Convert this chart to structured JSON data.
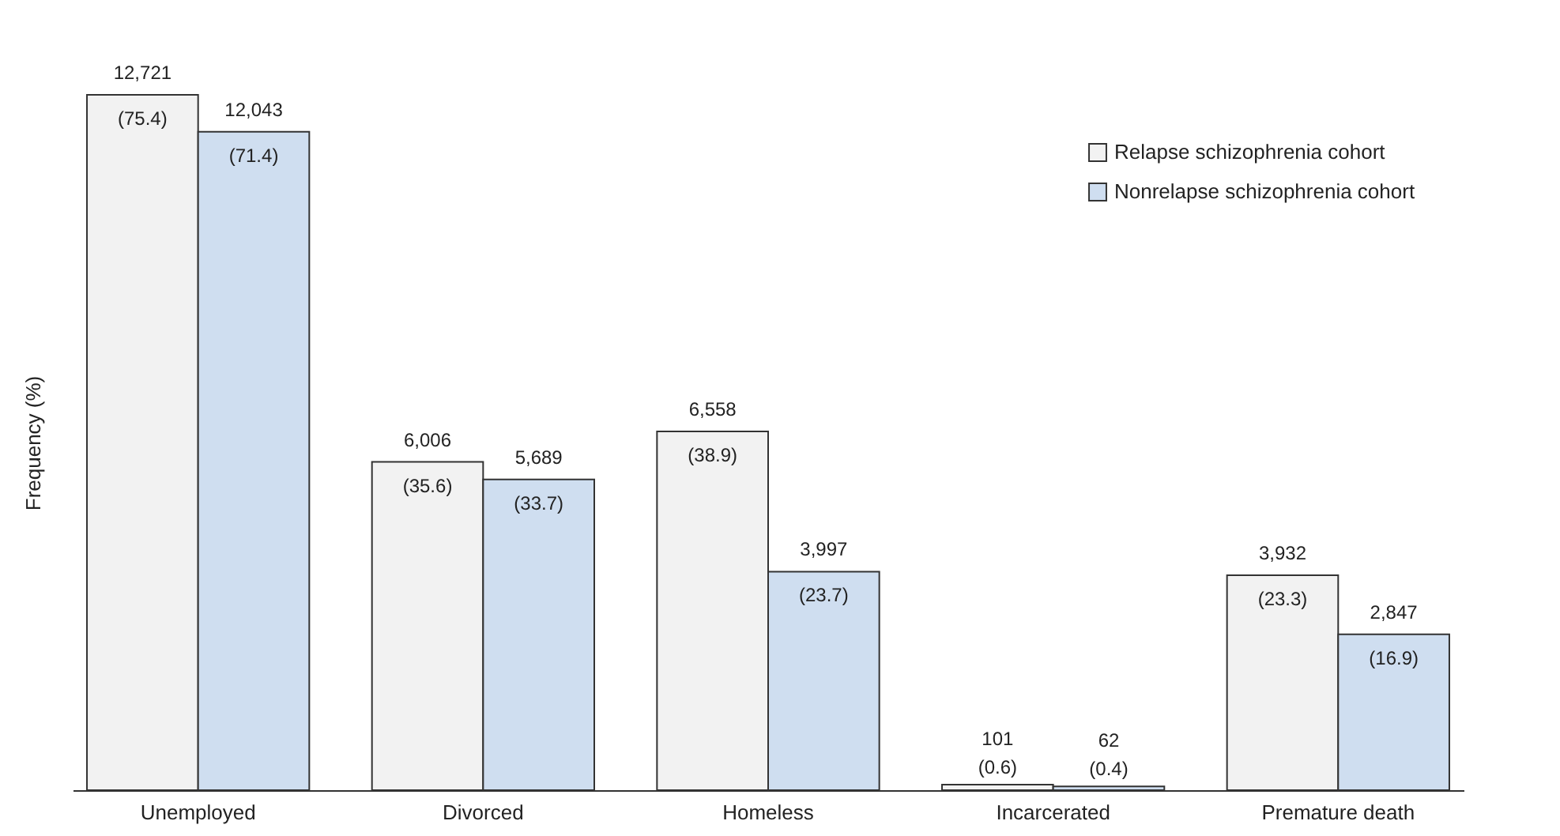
{
  "chart_data": {
    "type": "bar",
    "ylabel": "Frequency (%)",
    "categories": [
      "Unemployed",
      "Divorced",
      "Homeless",
      "Incarcerated",
      "Premature death"
    ],
    "legend": "top right",
    "series": [
      {
        "name": "Relapse schizophrenia cohort",
        "color": "#f2f2f2",
        "values": [
          75.4,
          35.6,
          38.9,
          0.6,
          23.3
        ],
        "value_labels": [
          "(75.4)",
          "(35.6)",
          "(38.9)",
          "(0.6)",
          "(23.3)"
        ]
      },
      {
        "name": "Nonrelapse schizophrenia cohort",
        "color": "#cfdef0",
        "values": [
          71.4,
          33.7,
          23.7,
          0.4,
          16.9
        ],
        "value_labels": [
          "(71.4)",
          "(33.7)",
          "(23.7)",
          "(0.4)",
          "(16.9)"
        ]
      }
    ],
    "annotations": [
      {
        "text": "12,721",
        "x": "Unemployed",
        "y": 75.4
      },
      {
        "text": "12,043",
        "x": "Unemployed",
        "y": 71.4
      },
      {
        "text": "6,006",
        "x": "Divorced",
        "y": 35.6
      },
      {
        "text": "5,689",
        "x": "Divorced",
        "y": 33.7
      },
      {
        "text": "6,558",
        "x": "Homeless",
        "y": 38.9
      },
      {
        "text": "3,997",
        "x": "Homeless",
        "y": 23.7
      },
      {
        "text": "101",
        "x": "Incarcerated",
        "y": 0.6
      },
      {
        "text": "62",
        "x": "Incarcerated",
        "y": 0.4
      },
      {
        "text": "3,932",
        "x": "Premature death",
        "y": 23.3
      },
      {
        "text": "2,847",
        "x": "Premature death",
        "y": 16.9
      }
    ]
  }
}
